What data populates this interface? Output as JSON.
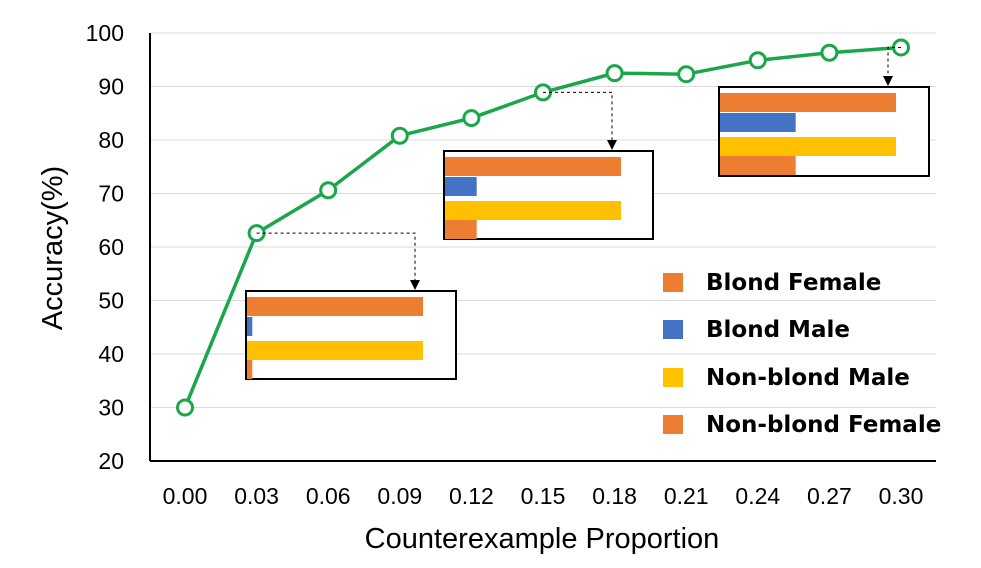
{
  "chart_data": {
    "type": "line",
    "xlabel": "Counterexample Proportion",
    "ylabel": "Accuracy(%)",
    "ylim": [
      20,
      100
    ],
    "y_ticks": [
      "20",
      "30",
      "40",
      "50",
      "60",
      "70",
      "80",
      "90",
      "100"
    ],
    "grid": true,
    "categories": [
      "0.00",
      "0.03",
      "0.06",
      "0.09",
      "0.12",
      "0.15",
      "0.18",
      "0.21",
      "0.24",
      "0.27",
      "0.30"
    ],
    "series": [
      {
        "values": [
          30.0,
          62.6,
          70.6,
          80.8,
          84.1,
          88.9,
          92.5,
          92.3,
          94.9,
          96.3,
          97.3
        ]
      }
    ],
    "colors": {
      "line": "#1aa64a",
      "grid": "#d9d9d9",
      "blond_female": "#ed7d31",
      "blond_male": "#4472c4",
      "nonblond_male": "#ffc000",
      "nonblond_female": "#ed7d31"
    },
    "legend": {
      "position": "bottom-right",
      "items": [
        {
          "label": "Blond Female",
          "color": "#ed7d31"
        },
        {
          "label": "Blond Male",
          "color": "#4472c4"
        },
        {
          "label": "Non-blond Male",
          "color": "#ffc000"
        },
        {
          "label": "Non-blond Female",
          "color": "#ed7d31"
        }
      ]
    },
    "insets": [
      {
        "at_category": "0.03",
        "bars": {
          "blond_female": 1.0,
          "blond_male": 0.03,
          "nonblond_male": 1.0,
          "nonblond_female": 0.03
        }
      },
      {
        "at_category": "0.15",
        "bars": {
          "blond_female": 1.0,
          "blond_male": 0.18,
          "nonblond_male": 1.0,
          "nonblond_female": 0.18
        }
      },
      {
        "at_category": "0.30",
        "bars": {
          "blond_female": 1.0,
          "blond_male": 0.43,
          "nonblond_male": 1.0,
          "nonblond_female": 0.43
        }
      }
    ]
  }
}
